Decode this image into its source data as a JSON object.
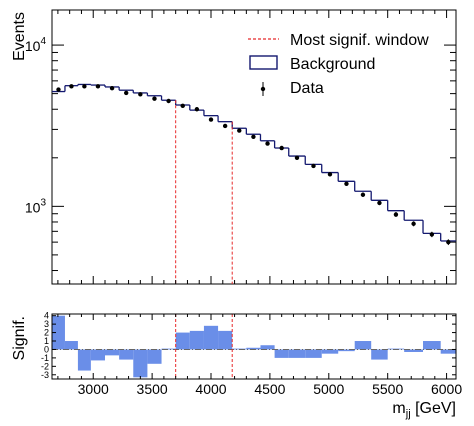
{
  "chart_data": [
    {
      "type": "line",
      "yscale": "log",
      "xlim": [
        2650,
        6080
      ],
      "ylim": [
        330,
        16500
      ],
      "ylabel": "Events",
      "xlabel": "",
      "x_ticks": [
        3000,
        3500,
        4000,
        4500,
        5000,
        5500,
        6000
      ],
      "y_ticks": [
        {
          "value": 1000,
          "label": "10",
          "exp": "3"
        },
        {
          "value": 10000,
          "label": "10",
          "exp": "4"
        }
      ],
      "legend_position": "top-right",
      "legend": [
        {
          "name": "Most signif. window",
          "style": "dashed",
          "color": "#e8292b"
        },
        {
          "name": "Background",
          "style": "box",
          "color": "#13186f"
        },
        {
          "name": "Data",
          "style": "marker",
          "color": "#000000"
        }
      ],
      "bin_edges": [
        2650,
        2760,
        2870,
        2980,
        3100,
        3220,
        3340,
        3460,
        3580,
        3700,
        3820,
        3940,
        4060,
        4180,
        4300,
        4420,
        4540,
        4660,
        4800,
        4940,
        5080,
        5220,
        5360,
        5500,
        5640,
        5800,
        5950,
        6080
      ],
      "background": [
        5150,
        5600,
        5700,
        5650,
        5500,
        5250,
        5050,
        4850,
        4550,
        4250,
        3950,
        3650,
        3350,
        3050,
        2800,
        2550,
        2300,
        2050,
        1820,
        1620,
        1430,
        1240,
        1090,
        940,
        820,
        680,
        610
      ],
      "data": {
        "x": [
          2705,
          2815,
          2925,
          3040,
          3160,
          3280,
          3400,
          3520,
          3640,
          3760,
          3880,
          4000,
          4120,
          4240,
          4360,
          4480,
          4600,
          4730,
          4870,
          5010,
          5150,
          5290,
          5430,
          5570,
          5720,
          5875,
          6015
        ],
        "y": [
          5300,
          5550,
          5550,
          5550,
          5400,
          5050,
          4950,
          4650,
          4500,
          4200,
          4000,
          3450,
          3150,
          2950,
          2700,
          2450,
          2300,
          2000,
          1780,
          1580,
          1380,
          1180,
          1050,
          890,
          780,
          670,
          600
        ]
      },
      "signal_window": [
        3700,
        4180
      ]
    },
    {
      "type": "bar",
      "xlim": [
        2650,
        6080
      ],
      "ylim": [
        -3.5,
        4.2
      ],
      "ylabel": "Signif.",
      "xlabel": "m",
      "xlabel_sub": "jj",
      "xlabel_unit": " [GeV]",
      "x_ticks": [
        3000,
        3500,
        4000,
        4500,
        5000,
        5500,
        6000
      ],
      "y_ticks": [
        {
          "value": 4,
          "label": "4"
        },
        {
          "value": 3,
          "label": "3"
        },
        {
          "value": 2,
          "label": "2"
        },
        {
          "value": 1,
          "label": "1"
        },
        {
          "value": 0,
          "label": "0"
        },
        {
          "value": -1,
          "label": "-1"
        },
        {
          "value": -2,
          "label": "-2"
        },
        {
          "value": -3,
          "label": "-3"
        }
      ],
      "bar_color": "#6a8ee8",
      "bin_edges": [
        2650,
        2760,
        2870,
        2980,
        3100,
        3220,
        3340,
        3460,
        3580,
        3700,
        3820,
        3940,
        4060,
        4180,
        4300,
        4420,
        4540,
        4660,
        4800,
        4940,
        5080,
        5220,
        5360,
        5500,
        5640,
        5800,
        5950,
        6080
      ],
      "values": [
        4.0,
        1.0,
        -2.5,
        -1.3,
        -0.7,
        -1.2,
        -3.3,
        -1.7,
        0.1,
        2.0,
        2.2,
        2.8,
        2.2,
        0.1,
        0.2,
        0.5,
        -1.0,
        -1.0,
        -1.0,
        -0.5,
        -0.2,
        1.0,
        -1.2,
        0.1,
        -0.3,
        1.0,
        -0.5
      ],
      "signal_window": [
        3700,
        4180
      ]
    }
  ]
}
